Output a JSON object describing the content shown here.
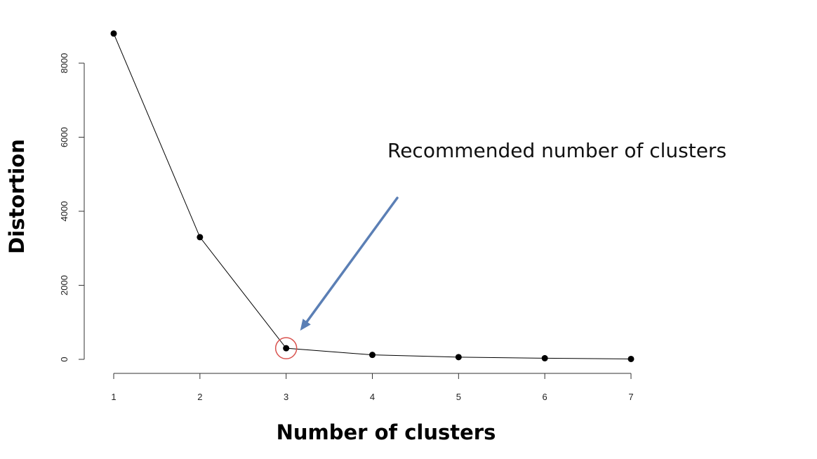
{
  "chart_data": {
    "type": "line",
    "xlabel": "Number of clusters",
    "ylabel": "Distortion",
    "x": [
      1,
      2,
      3,
      4,
      5,
      6,
      7
    ],
    "values": [
      8800,
      3300,
      300,
      120,
      60,
      30,
      10
    ],
    "xlim": [
      1,
      7
    ],
    "ylim": [
      0,
      8000
    ],
    "x_ticks": [
      "1",
      "2",
      "3",
      "4",
      "5",
      "6",
      "7"
    ],
    "y_ticks": [
      "0",
      "2000",
      "4000",
      "6000",
      "8000"
    ],
    "grid": false,
    "legend": "none",
    "highlight": {
      "x": 3,
      "y": 300,
      "color": "#d9534f"
    },
    "annotation": {
      "text": "Recommended number of clusters",
      "arrow_target": {
        "x": 3,
        "y": 300
      },
      "arrow_color": "#5b7fb5"
    },
    "colors": {
      "line": "#000000",
      "points": "#000000"
    }
  }
}
